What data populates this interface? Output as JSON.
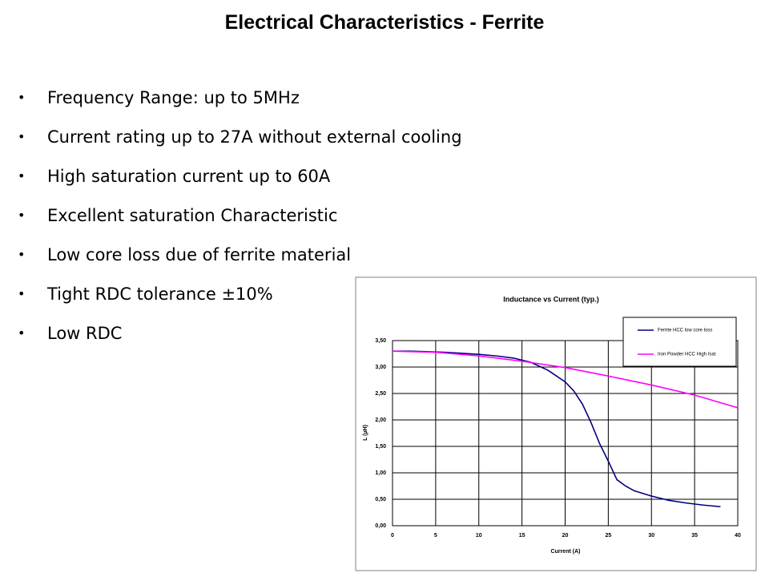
{
  "header": {
    "title": "Electrical Characteristics - Ferrite"
  },
  "bullets": [
    "Frequency Range: up to 5MHz",
    "Current rating up to 27A without external cooling",
    "High saturation current up to 60A",
    "Excellent saturation Characteristic",
    "Low core loss due of ferrite material",
    "Tight RDC tolerance ±10%",
    "Low RDC"
  ],
  "chart_data": {
    "type": "line",
    "title": "Inductance vs Current (typ.)",
    "x_label": "Current (A)",
    "y_label": "L (µH)",
    "xlim": [
      0,
      40
    ],
    "xticks": [
      0,
      5,
      10,
      15,
      20,
      25,
      30,
      35,
      40
    ],
    "ylim": [
      0,
      3.5
    ],
    "yticks": [
      {
        "value": 0,
        "label": "0,00"
      },
      {
        "value": 0.5,
        "label": "0,50"
      },
      {
        "value": 1,
        "label": "1,00"
      },
      {
        "value": 1.5,
        "label": "1,50"
      },
      {
        "value": 2,
        "label": "2,00"
      },
      {
        "value": 2.5,
        "label": "2,50"
      },
      {
        "value": 3,
        "label": "3,00"
      },
      {
        "value": 3.5,
        "label": "3,50"
      }
    ],
    "grid": true,
    "legend": "top-right",
    "series": [
      {
        "name": "Ferrite HCC low core loss",
        "color": "#000080",
        "x": [
          0,
          2,
          4,
          6,
          8,
          10,
          12,
          14,
          16,
          18,
          20,
          21,
          22,
          23,
          24,
          25,
          26,
          27,
          28,
          30,
          32,
          34,
          36,
          38
        ],
        "values": [
          3.3,
          3.3,
          3.29,
          3.28,
          3.26,
          3.24,
          3.21,
          3.17,
          3.09,
          2.94,
          2.72,
          2.55,
          2.3,
          1.95,
          1.55,
          1.22,
          0.87,
          0.75,
          0.66,
          0.56,
          0.48,
          0.43,
          0.39,
          0.36
        ]
      },
      {
        "name": "Iron Powder  HCC High Isat",
        "color": "#ff00ff",
        "x": [
          0,
          5,
          10,
          15,
          20,
          25,
          30,
          35,
          40
        ],
        "values": [
          3.3,
          3.28,
          3.21,
          3.11,
          2.99,
          2.83,
          2.66,
          2.47,
          2.23
        ]
      }
    ]
  }
}
